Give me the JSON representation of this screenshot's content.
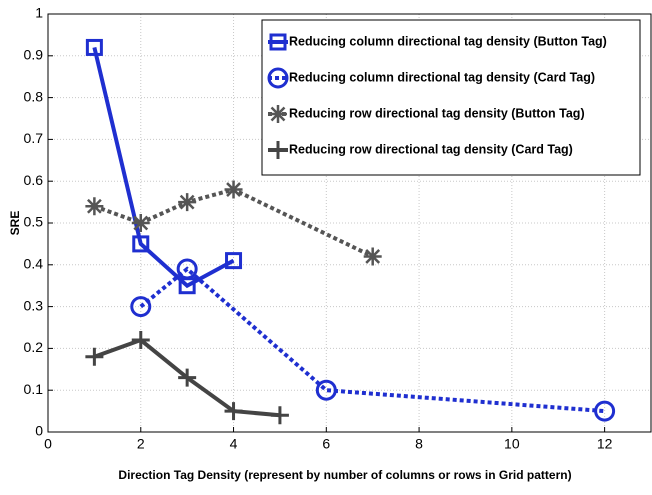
{
  "chart_data": {
    "type": "line",
    "xlabel": "Direction Tag Density (represent by number of columns or rows in Grid pattern)",
    "ylabel": "SRE",
    "xlim": [
      0,
      13
    ],
    "xticks": [
      0,
      2,
      4,
      6,
      8,
      10,
      12
    ],
    "ylim": [
      0,
      1
    ],
    "yticks": [
      0,
      0.1,
      0.2,
      0.3,
      0.4,
      0.5,
      0.6,
      0.7,
      0.8,
      0.9,
      1
    ],
    "grid": true,
    "legend": "upper right",
    "series": [
      {
        "name": "Reducing column directional tag density (Button Tag)",
        "color": "#1f2fd0",
        "dash": "solid",
        "marker": "square",
        "x": [
          1,
          2,
          3,
          4
        ],
        "values": [
          0.92,
          0.45,
          0.35,
          0.41
        ]
      },
      {
        "name": "Reducing column directional tag density (Card Tag)",
        "color": "#1f2fd0",
        "dash": "dotted",
        "marker": "circle",
        "x": [
          2,
          3,
          6,
          12
        ],
        "values": [
          0.3,
          0.39,
          0.1,
          0.05
        ]
      },
      {
        "name": "Reducing row directional tag density (Button Tag)",
        "color": "#555555",
        "dash": "dotted",
        "marker": "asterisk",
        "x": [
          1,
          2,
          3,
          4,
          7
        ],
        "values": [
          0.54,
          0.5,
          0.55,
          0.58,
          0.42
        ]
      },
      {
        "name": "Reducing row directional tag density (Card Tag)",
        "color": "#444444",
        "dash": "solid",
        "marker": "plus",
        "x": [
          1,
          2,
          3,
          4,
          5
        ],
        "values": [
          0.18,
          0.22,
          0.13,
          0.05,
          0.04
        ]
      }
    ]
  }
}
